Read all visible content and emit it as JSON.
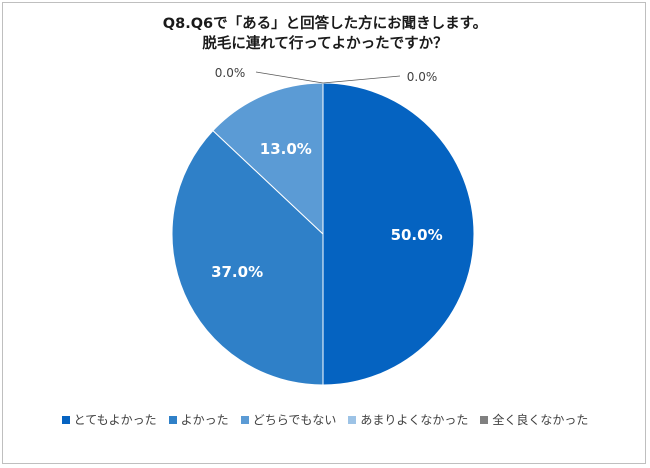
{
  "chart_data": {
    "type": "pie",
    "title_lines": [
      "Q8.Q6で「ある」と回答した方にお聞きします。",
      "脱毛に連れて行ってよかったですか？"
    ],
    "categories": [
      "とてもよかった",
      "よかった",
      "どちらでもない",
      "あまりよくなかった",
      "全く良くなかった"
    ],
    "values": [
      50.0,
      37.0,
      13.0,
      0.0,
      0.0
    ],
    "data_labels": [
      "50.0%",
      "37.0%",
      "13.0%",
      "0.0%",
      "0.0%"
    ],
    "colors": [
      "#0563c1",
      "#2f80c8",
      "#5b9bd5",
      "#9dc3e6",
      "#808080"
    ],
    "start_angle": "12 o'clock",
    "direction": "clockwise",
    "legend": "bottom"
  }
}
